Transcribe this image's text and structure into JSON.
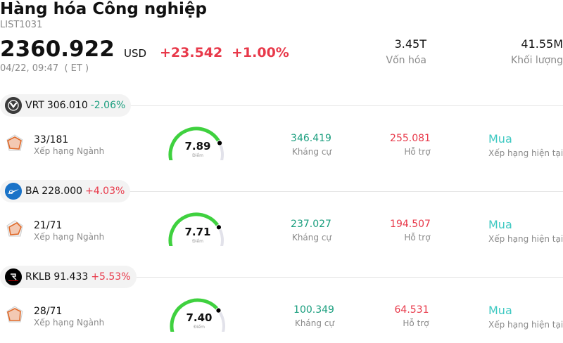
{
  "header": {
    "title": "Hàng hóa Công nghiệp",
    "code": "LIST1031",
    "price": "2360.922",
    "currency": "USD",
    "change": "+23.542",
    "change_pct": "+1.00%",
    "time": "04/22, 09:47  ( ET )"
  },
  "stats": {
    "market_cap": "3.45T",
    "market_cap_label": "Vốn hóa",
    "volume": "41.55M",
    "volume_label": "Khối lượng"
  },
  "labels": {
    "rank": "Xếp hạng Ngành",
    "score": "Điểm",
    "resistance": "Kháng cự",
    "support": "Hỗ trợ",
    "rating": "Xếp hạng hiện tại"
  },
  "colors": {
    "up": "#e8394a",
    "down": "#1a9e7e",
    "gauge_green": "#3fd13f",
    "rating": "#3fc9c2"
  },
  "stocks": [
    {
      "symbol": "VRT",
      "price": "306.010",
      "change_pct": "-2.06%",
      "logo_icon": "vrt-logo-icon",
      "rank": "33/181",
      "score": "7.89",
      "score_value": 7.89,
      "resistance": "346.419",
      "support": "255.081",
      "rating": "Mua"
    },
    {
      "symbol": "BA",
      "price": "228.000",
      "change_pct": "+4.03%",
      "logo_icon": "ba-logo-icon",
      "rank": "21/71",
      "score": "7.71",
      "score_value": 7.71,
      "resistance": "237.027",
      "support": "194.507",
      "rating": "Mua"
    },
    {
      "symbol": "RKLB",
      "price": "91.433",
      "change_pct": "+5.53%",
      "logo_icon": "rklb-logo-icon",
      "rank": "28/71",
      "score": "7.40",
      "score_value": 7.4,
      "resistance": "100.349",
      "support": "64.531",
      "rating": "Mua"
    }
  ]
}
